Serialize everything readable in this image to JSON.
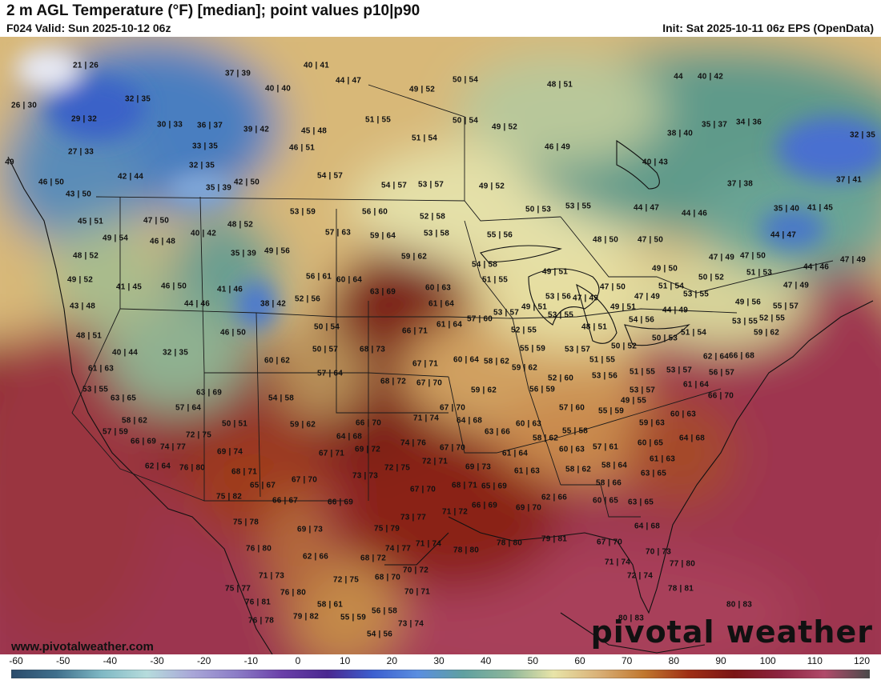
{
  "header": {
    "title": "2 m AGL Temperature (°F) [median]; point values p10|p90",
    "valid": "F024 Valid: Sun 2025-10-12 06z",
    "init": "Init: Sat 2025-10-11 06z EPS (OpenData)"
  },
  "footer": {
    "url": "www.pivotalweather.com",
    "brand": "pivotal weather"
  },
  "legend": {
    "ticks": [
      "-60",
      "-50",
      "-40",
      "-30",
      "-20",
      "-10",
      "0",
      "10",
      "20",
      "30",
      "40",
      "50",
      "60",
      "70",
      "80",
      "90",
      "100",
      "110",
      "120"
    ],
    "colors": [
      "#2a4b6b",
      "#3f6f8c",
      "#7fb8c4",
      "#b6dcdc",
      "#a9a7d8",
      "#8b7cc6",
      "#6a3fa8",
      "#4a2890",
      "#3c5fcf",
      "#5a8ee0",
      "#5fa0a0",
      "#8bb59a",
      "#e8e4a8",
      "#d9b077",
      "#c0772f",
      "#9e2e14",
      "#7a1414",
      "#8c2340",
      "#b04a6a",
      "#4a4a4a"
    ]
  },
  "points": [
    [
      "21|26",
      107,
      82
    ],
    [
      "37|39",
      297,
      92
    ],
    [
      "40|41",
      395,
      82
    ],
    [
      "44|47",
      435,
      101
    ],
    [
      "40|40",
      347,
      111
    ],
    [
      "49|52",
      527,
      112
    ],
    [
      "50|54",
      581,
      100
    ],
    [
      "48|51",
      699,
      106
    ],
    [
      "40|42",
      887,
      96
    ],
    [
      "44",
      847,
      96
    ],
    [
      "26|30",
      30,
      132
    ],
    [
      "32|35",
      172,
      124
    ],
    [
      "29|32",
      105,
      149
    ],
    [
      "30|33",
      212,
      156
    ],
    [
      "36|37",
      262,
      157
    ],
    [
      "39|42",
      320,
      162
    ],
    [
      "45|48",
      392,
      164
    ],
    [
      "51|55",
      472,
      150
    ],
    [
      "50|54",
      581,
      151
    ],
    [
      "49|52",
      630,
      159
    ],
    [
      "38|40",
      849,
      167
    ],
    [
      "35|37",
      892,
      156
    ],
    [
      "34|36",
      935,
      153
    ],
    [
      "32|35",
      1077,
      169
    ],
    [
      "27|33",
      101,
      190
    ],
    [
      "33|35",
      256,
      183
    ],
    [
      "46|51",
      377,
      185
    ],
    [
      "51|54",
      530,
      173
    ],
    [
      "46|49",
      696,
      184
    ],
    [
      "49",
      12,
      203
    ],
    [
      "32|35",
      252,
      207
    ],
    [
      "40|43",
      818,
      203
    ],
    [
      "42|44",
      163,
      221
    ],
    [
      "46|50",
      64,
      228
    ],
    [
      "54|57",
      412,
      220
    ],
    [
      "54|57",
      492,
      232
    ],
    [
      "53|57",
      538,
      231
    ],
    [
      "49|52",
      614,
      233
    ],
    [
      "37|38",
      924,
      230
    ],
    [
      "37|41",
      1060,
      225
    ],
    [
      "35|39",
      273,
      235
    ],
    [
      "42|50",
      308,
      228
    ],
    [
      "43|50",
      98,
      243
    ],
    [
      "50|53",
      672,
      262
    ],
    [
      "53|55",
      722,
      258
    ],
    [
      "44|47",
      807,
      260
    ],
    [
      "44|46",
      867,
      267
    ],
    [
      "35|40",
      982,
      261
    ],
    [
      "41|45",
      1024,
      260
    ],
    [
      "45|51",
      113,
      277
    ],
    [
      "47|50",
      195,
      276
    ],
    [
      "48|52",
      300,
      281
    ],
    [
      "53|59",
      378,
      265
    ],
    [
      "56|60",
      468,
      265
    ],
    [
      "52|58",
      540,
      271
    ],
    [
      "40|42",
      254,
      292
    ],
    [
      "49|54",
      144,
      298
    ],
    [
      "46|48",
      203,
      302
    ],
    [
      "57|63",
      422,
      291
    ],
    [
      "59|64",
      478,
      295
    ],
    [
      "53|58",
      545,
      292
    ],
    [
      "55|56",
      624,
      294
    ],
    [
      "48|50",
      756,
      300
    ],
    [
      "47|50",
      812,
      300
    ],
    [
      "44|47",
      978,
      294
    ],
    [
      "48|52",
      107,
      320
    ],
    [
      "35|39",
      304,
      317
    ],
    [
      "49|56",
      346,
      314
    ],
    [
      "59|62",
      517,
      321
    ],
    [
      "54|58",
      605,
      331
    ],
    [
      "49|51",
      693,
      340
    ],
    [
      "49|50",
      830,
      336
    ],
    [
      "47|49",
      901,
      322
    ],
    [
      "47|50",
      940,
      320
    ],
    [
      "47|49",
      1065,
      325
    ],
    [
      "44|46",
      1019,
      334
    ],
    [
      "51|53",
      948,
      341
    ],
    [
      "49|52",
      100,
      350
    ],
    [
      "56|61",
      398,
      346
    ],
    [
      "60|64",
      436,
      350
    ],
    [
      "51|55",
      618,
      350
    ],
    [
      "50|52",
      888,
      347
    ],
    [
      "41|45",
      161,
      359
    ],
    [
      "46|50",
      217,
      358
    ],
    [
      "41|46",
      287,
      362
    ],
    [
      "60|63",
      547,
      360
    ],
    [
      "47|50",
      765,
      359
    ],
    [
      "51|54",
      838,
      358
    ],
    [
      "53|55",
      869,
      368
    ],
    [
      "47|49",
      994,
      357
    ],
    [
      "43|48",
      103,
      383
    ],
    [
      "44|46",
      246,
      380
    ],
    [
      "38|42",
      341,
      380
    ],
    [
      "52|56",
      384,
      374
    ],
    [
      "63|69",
      478,
      365
    ],
    [
      "53|56",
      697,
      371
    ],
    [
      "47|49",
      731,
      373
    ],
    [
      "47|49",
      808,
      371
    ],
    [
      "49|56",
      934,
      378
    ],
    [
      "55|57",
      981,
      383
    ],
    [
      "61|64",
      551,
      380
    ],
    [
      "57|60",
      599,
      399
    ],
    [
      "53|57",
      632,
      391
    ],
    [
      "49|51",
      667,
      384
    ],
    [
      "49|51",
      778,
      384
    ],
    [
      "44|49",
      843,
      388
    ],
    [
      "53|55",
      700,
      394
    ],
    [
      "54|56",
      801,
      400
    ],
    [
      "53|55",
      930,
      402
    ],
    [
      "52|55",
      964,
      398
    ],
    [
      "59|62",
      957,
      416
    ],
    [
      "48|51",
      111,
      420
    ],
    [
      "40|44",
      156,
      441
    ],
    [
      "32|35",
      219,
      441
    ],
    [
      "46|50",
      291,
      416
    ],
    [
      "50|54",
      408,
      409
    ],
    [
      "66|71",
      518,
      414
    ],
    [
      "61|64",
      561,
      406
    ],
    [
      "52|55",
      654,
      413
    ],
    [
      "48|51",
      742,
      409
    ],
    [
      "51|54",
      866,
      416
    ],
    [
      "50|53",
      830,
      423
    ],
    [
      "50|57",
      406,
      437
    ],
    [
      "68|73",
      465,
      437
    ],
    [
      "55|59",
      665,
      436
    ],
    [
      "53|57",
      721,
      437
    ],
    [
      "50|52",
      779,
      433
    ],
    [
      "62|64",
      894,
      446
    ],
    [
      "66|68",
      926,
      445
    ],
    [
      "60|62",
      346,
      451
    ],
    [
      "67|71",
      531,
      455
    ],
    [
      "60|64",
      582,
      450
    ],
    [
      "58|62",
      620,
      452
    ],
    [
      "59|62",
      655,
      460
    ],
    [
      "51|55",
      752,
      450
    ],
    [
      "56|57",
      901,
      466
    ],
    [
      "61|63",
      126,
      461
    ],
    [
      "57|64",
      412,
      467
    ],
    [
      "68|72",
      491,
      477
    ],
    [
      "67|70",
      536,
      479
    ],
    [
      "52|60",
      700,
      473
    ],
    [
      "53|56",
      755,
      470
    ],
    [
      "51|55",
      802,
      465
    ],
    [
      "53|57",
      848,
      463
    ],
    [
      "61|64",
      869,
      481
    ],
    [
      "53|55",
      119,
      487
    ],
    [
      "63|69",
      261,
      491
    ],
    [
      "59|62",
      604,
      488
    ],
    [
      "56|59",
      677,
      487
    ],
    [
      "53|57",
      802,
      488
    ],
    [
      "66|70",
      900,
      495
    ],
    [
      "63|65",
      154,
      498
    ],
    [
      "54|58",
      351,
      498
    ],
    [
      "67|70",
      565,
      510
    ],
    [
      "57|64",
      235,
      510
    ],
    [
      "57|60",
      714,
      510
    ],
    [
      "55|59",
      763,
      514
    ],
    [
      "60|63",
      853,
      518
    ],
    [
      "49|55",
      791,
      501
    ],
    [
      "58|62",
      168,
      526
    ],
    [
      "50|51",
      293,
      530
    ],
    [
      "66|70",
      460,
      529
    ],
    [
      "71|74",
      532,
      523
    ],
    [
      "64|68",
      586,
      526
    ],
    [
      "60|63",
      660,
      530
    ],
    [
      "59|63",
      814,
      529
    ],
    [
      "57|59",
      144,
      540
    ],
    [
      "72|75",
      248,
      544
    ],
    [
      "59|62",
      378,
      531
    ],
    [
      "64|68",
      436,
      546
    ],
    [
      "63|66",
      621,
      540
    ],
    [
      "55|58",
      718,
      539
    ],
    [
      "66|69",
      179,
      552
    ],
    [
      "74|77",
      216,
      559
    ],
    [
      "74|76",
      516,
      554
    ],
    [
      "67|70",
      565,
      560
    ],
    [
      "58|62",
      681,
      548
    ],
    [
      "60|65",
      812,
      554
    ],
    [
      "64|68",
      864,
      548
    ],
    [
      "69|74",
      287,
      565
    ],
    [
      "67|71",
      414,
      567
    ],
    [
      "69|72",
      459,
      562
    ],
    [
      "60|63",
      714,
      562
    ],
    [
      "57|61",
      756,
      559
    ],
    [
      "62|64",
      197,
      583
    ],
    [
      "76|80",
      240,
      585
    ],
    [
      "61|64",
      643,
      567
    ],
    [
      "61|63",
      827,
      574
    ],
    [
      "68|71",
      305,
      590
    ],
    [
      "72|75",
      496,
      585
    ],
    [
      "72|71",
      543,
      577
    ],
    [
      "69|73",
      597,
      584
    ],
    [
      "58|64",
      767,
      582
    ],
    [
      "58|62",
      722,
      587
    ],
    [
      "63|65",
      816,
      592
    ],
    [
      "73|73",
      456,
      595
    ],
    [
      "67|70",
      380,
      600
    ],
    [
      "65|67",
      328,
      607
    ],
    [
      "61|63",
      658,
      589
    ],
    [
      "68|71",
      580,
      607
    ],
    [
      "65|69",
      617,
      608
    ],
    [
      "58|66",
      760,
      604
    ],
    [
      "67|70",
      528,
      612
    ],
    [
      "66|69",
      425,
      628
    ],
    [
      "75|82",
      286,
      621
    ],
    [
      "66|67",
      356,
      626
    ],
    [
      "71|72",
      568,
      640
    ],
    [
      "66|69",
      605,
      632
    ],
    [
      "69|70",
      660,
      635
    ],
    [
      "62|66",
      692,
      622
    ],
    [
      "60|65",
      756,
      626
    ],
    [
      "63|65",
      800,
      628
    ],
    [
      "75|78",
      307,
      653
    ],
    [
      "73|77",
      516,
      647
    ],
    [
      "64|68",
      808,
      658
    ],
    [
      "69|73",
      387,
      662
    ],
    [
      "75|79",
      483,
      661
    ],
    [
      "76|80",
      323,
      686
    ],
    [
      "74|77",
      497,
      686
    ],
    [
      "71|74",
      535,
      680
    ],
    [
      "78|80",
      582,
      688
    ],
    [
      "78|80",
      636,
      679
    ],
    [
      "79|81",
      692,
      674
    ],
    [
      "67|70",
      761,
      678
    ],
    [
      "70|73",
      822,
      690
    ],
    [
      "77|80",
      852,
      705
    ],
    [
      "62|66",
      394,
      696
    ],
    [
      "68|72",
      466,
      698
    ],
    [
      "71|74",
      771,
      703
    ],
    [
      "71|73",
      339,
      720
    ],
    [
      "72|75",
      432,
      725
    ],
    [
      "68|70",
      484,
      722
    ],
    [
      "70|72",
      519,
      713
    ],
    [
      "72|74",
      799,
      720
    ],
    [
      "75|77",
      297,
      736
    ],
    [
      "76|80",
      366,
      741
    ],
    [
      "70|71",
      521,
      740
    ],
    [
      "78|81",
      850,
      736
    ],
    [
      "76|81",
      322,
      753
    ],
    [
      "58|61",
      412,
      756
    ],
    [
      "56|58",
      480,
      764
    ],
    [
      "80|83",
      923,
      756
    ],
    [
      "76|78",
      326,
      776
    ],
    [
      "79|82",
      382,
      771
    ],
    [
      "55|59",
      441,
      772
    ],
    [
      "73|74",
      513,
      780
    ],
    [
      "80|83",
      788,
      773
    ],
    [
      "54|56",
      474,
      793
    ]
  ]
}
